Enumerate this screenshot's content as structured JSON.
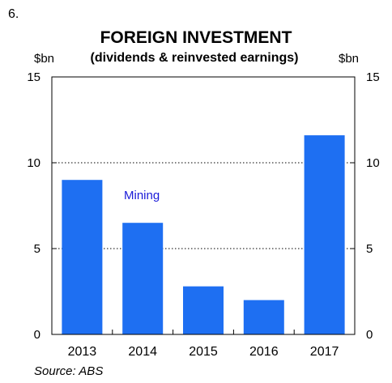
{
  "figure_number": "6.",
  "source": "Source: ABS",
  "colors": {
    "bar": "#1e6ff2",
    "annotation": "#1a1ad8",
    "grid": "#000000"
  },
  "chart_data": {
    "type": "bar",
    "title": "FOREIGN INVESTMENT",
    "subtitle": "(dividends & reinvested earnings)",
    "ylabel": "$bn",
    "ylabel_right": "$bn",
    "categories": [
      "2013",
      "2014",
      "2015",
      "2016",
      "2017"
    ],
    "values": [
      9.0,
      6.5,
      2.8,
      2.0,
      11.6
    ],
    "ylim": [
      0,
      15
    ],
    "yticks": [
      0,
      5,
      10,
      15
    ],
    "grid": "dotted horizontal",
    "annotations": [
      {
        "text": "Mining"
      }
    ]
  }
}
